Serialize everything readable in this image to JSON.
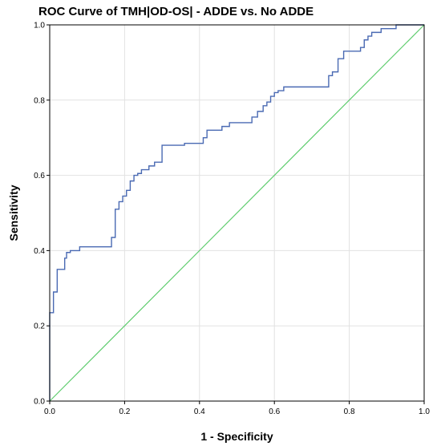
{
  "chart_data": {
    "type": "line",
    "title": "ROC Curve of TMH|OD-OS| - ADDE vs. No ADDE",
    "xlabel": "1 - Specificity",
    "ylabel": "Sensitivity",
    "xlim": [
      0,
      1
    ],
    "ylim": [
      0,
      1
    ],
    "grid": true,
    "x_ticks": [
      "0.0",
      "0.2",
      "0.4",
      "0.6",
      "0.8",
      "1.0"
    ],
    "y_ticks": [
      "0.0",
      "0.2",
      "0.4",
      "0.6",
      "0.8",
      "1.0"
    ],
    "colors": {
      "roc": "#4a6ab3",
      "reference": "#5ecc6e",
      "grid": "#e2e2e2"
    },
    "series": [
      {
        "type": "step",
        "points": [
          [
            0.0,
            0.0
          ],
          [
            0.0,
            0.235
          ],
          [
            0.01,
            0.235
          ],
          [
            0.01,
            0.29
          ],
          [
            0.02,
            0.29
          ],
          [
            0.02,
            0.35
          ],
          [
            0.04,
            0.35
          ],
          [
            0.04,
            0.38
          ],
          [
            0.045,
            0.38
          ],
          [
            0.045,
            0.395
          ],
          [
            0.055,
            0.395
          ],
          [
            0.055,
            0.4
          ],
          [
            0.08,
            0.4
          ],
          [
            0.08,
            0.41
          ],
          [
            0.165,
            0.41
          ],
          [
            0.165,
            0.435
          ],
          [
            0.175,
            0.435
          ],
          [
            0.175,
            0.51
          ],
          [
            0.185,
            0.51
          ],
          [
            0.185,
            0.53
          ],
          [
            0.195,
            0.53
          ],
          [
            0.195,
            0.545
          ],
          [
            0.205,
            0.545
          ],
          [
            0.205,
            0.56
          ],
          [
            0.215,
            0.56
          ],
          [
            0.215,
            0.585
          ],
          [
            0.225,
            0.585
          ],
          [
            0.225,
            0.6
          ],
          [
            0.235,
            0.6
          ],
          [
            0.235,
            0.605
          ],
          [
            0.245,
            0.605
          ],
          [
            0.245,
            0.615
          ],
          [
            0.265,
            0.615
          ],
          [
            0.265,
            0.625
          ],
          [
            0.28,
            0.625
          ],
          [
            0.28,
            0.635
          ],
          [
            0.3,
            0.635
          ],
          [
            0.3,
            0.68
          ],
          [
            0.36,
            0.68
          ],
          [
            0.36,
            0.685
          ],
          [
            0.41,
            0.685
          ],
          [
            0.41,
            0.7
          ],
          [
            0.42,
            0.7
          ],
          [
            0.42,
            0.72
          ],
          [
            0.46,
            0.72
          ],
          [
            0.46,
            0.73
          ],
          [
            0.48,
            0.73
          ],
          [
            0.48,
            0.74
          ],
          [
            0.54,
            0.74
          ],
          [
            0.54,
            0.755
          ],
          [
            0.555,
            0.755
          ],
          [
            0.555,
            0.77
          ],
          [
            0.57,
            0.77
          ],
          [
            0.57,
            0.785
          ],
          [
            0.58,
            0.785
          ],
          [
            0.58,
            0.795
          ],
          [
            0.59,
            0.795
          ],
          [
            0.59,
            0.81
          ],
          [
            0.6,
            0.81
          ],
          [
            0.6,
            0.82
          ],
          [
            0.61,
            0.82
          ],
          [
            0.61,
            0.825
          ],
          [
            0.625,
            0.825
          ],
          [
            0.625,
            0.835
          ],
          [
            0.745,
            0.835
          ],
          [
            0.745,
            0.865
          ],
          [
            0.755,
            0.865
          ],
          [
            0.755,
            0.875
          ],
          [
            0.77,
            0.875
          ],
          [
            0.77,
            0.91
          ],
          [
            0.785,
            0.91
          ],
          [
            0.785,
            0.93
          ],
          [
            0.83,
            0.93
          ],
          [
            0.83,
            0.94
          ],
          [
            0.84,
            0.94
          ],
          [
            0.84,
            0.96
          ],
          [
            0.85,
            0.96
          ],
          [
            0.85,
            0.97
          ],
          [
            0.86,
            0.97
          ],
          [
            0.86,
            0.98
          ],
          [
            0.885,
            0.98
          ],
          [
            0.885,
            0.99
          ],
          [
            0.925,
            0.99
          ],
          [
            0.925,
            1.0
          ],
          [
            1.0,
            1.0
          ]
        ]
      },
      {
        "type": "reference",
        "points": [
          [
            0,
            0
          ],
          [
            1,
            1
          ]
        ]
      }
    ]
  }
}
